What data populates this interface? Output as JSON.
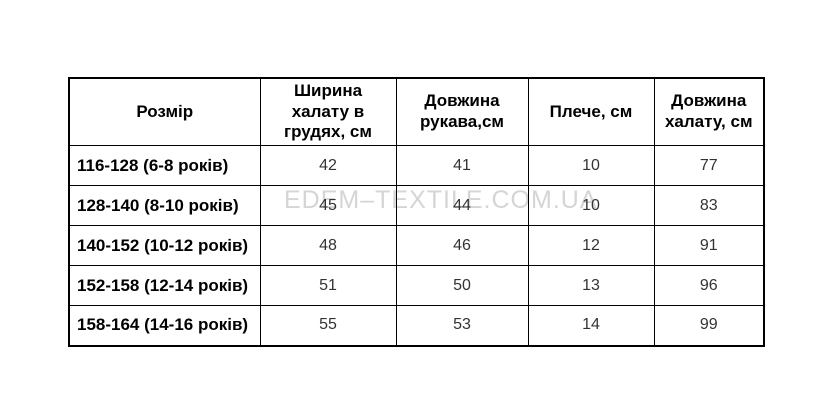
{
  "watermark": {
    "text": "EDEM–TEXTILE.COM.UA",
    "color": "#d5d5d5"
  },
  "size_chart": {
    "headers": [
      "Розмір",
      "Ширина халату в грудях, см",
      "Довжина рукава,см",
      "Плече, см",
      "Довжина халату, см"
    ],
    "rows": [
      {
        "size": "116-128 (6-8 років)",
        "values": [
          "42",
          "41",
          "10",
          "77"
        ]
      },
      {
        "size": "128-140 (8-10 років)",
        "values": [
          "45",
          "44",
          "10",
          "83"
        ]
      },
      {
        "size": "140-152 (10-12 років)",
        "values": [
          "48",
          "46",
          "12",
          "91"
        ]
      },
      {
        "size": "152-158 (12-14 років)",
        "values": [
          "51",
          "50",
          "13",
          "96"
        ]
      },
      {
        "size": "158-164 (14-16 років)",
        "values": [
          "55",
          "53",
          "14",
          "99"
        ]
      }
    ]
  }
}
